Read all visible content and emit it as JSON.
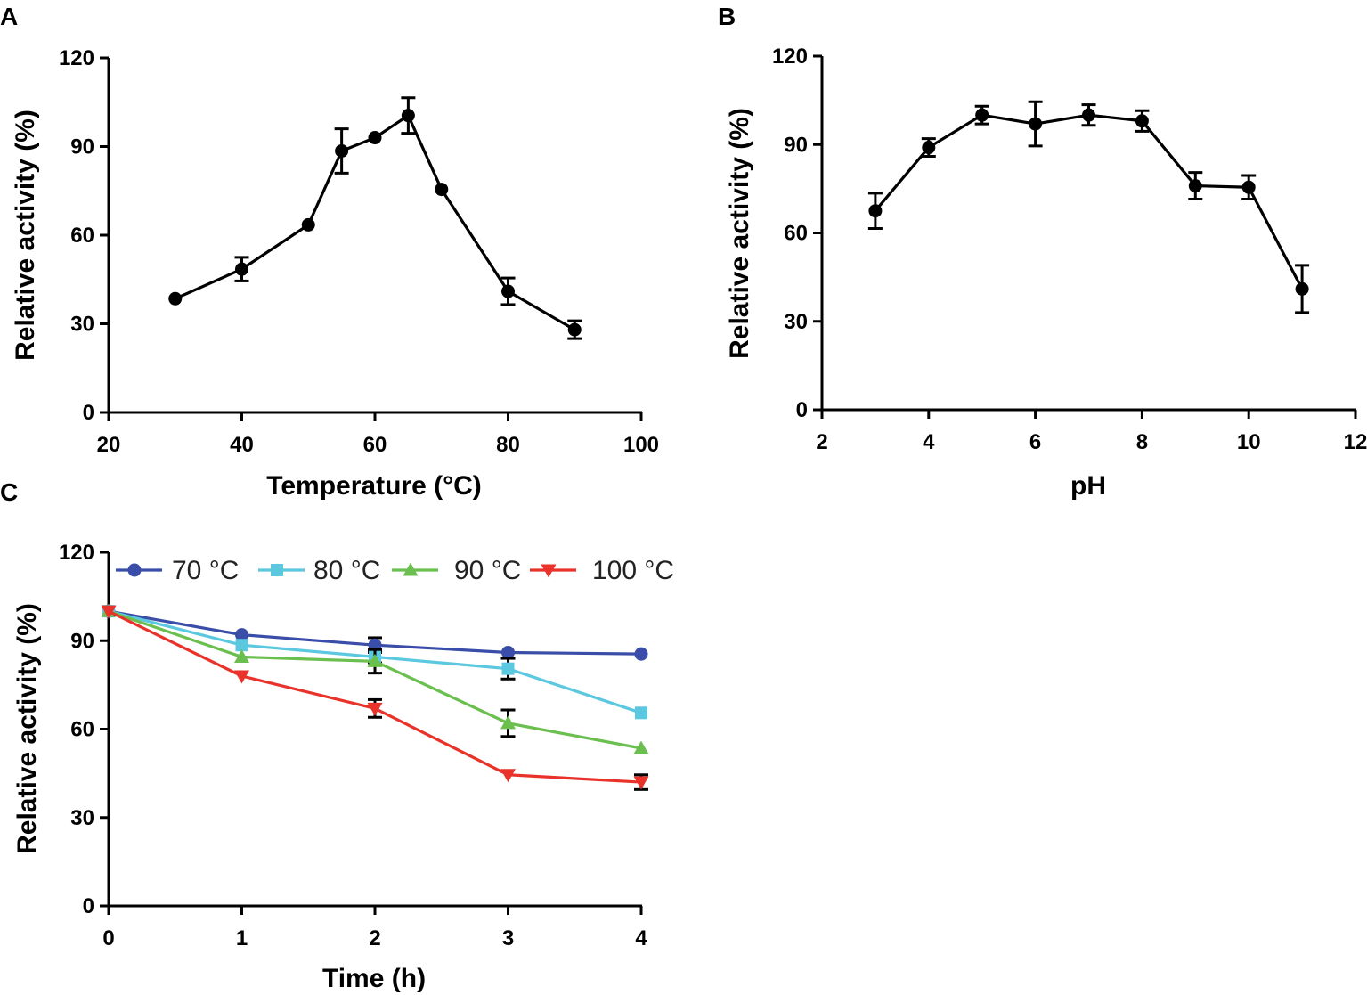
{
  "chart_data": [
    {
      "id": "A",
      "panel_label": "A",
      "type": "line",
      "xlabel": "Temperature (°C)",
      "ylabel": "Relative activity (%)",
      "xlim": [
        20,
        100
      ],
      "ylim": [
        0,
        120
      ],
      "x_ticks": [
        20,
        40,
        60,
        80,
        100
      ],
      "y_ticks": [
        0,
        30,
        60,
        90,
        120
      ],
      "grid": false,
      "series": [
        {
          "name": "Relative activity",
          "color": "#000000",
          "marker": "circle",
          "x": [
            30,
            40,
            50,
            55,
            60,
            65,
            70,
            80,
            90
          ],
          "values": [
            38.5,
            48.5,
            63.5,
            88.5,
            93,
            100.5,
            75.5,
            41,
            28
          ],
          "errors": [
            0,
            4,
            0,
            7.5,
            0,
            6,
            0,
            4.5,
            3
          ]
        }
      ]
    },
    {
      "id": "B",
      "panel_label": "B",
      "type": "line",
      "xlabel": "pH",
      "ylabel": "Relative activity (%)",
      "xlim": [
        2,
        12
      ],
      "ylim": [
        0,
        120
      ],
      "x_ticks": [
        2,
        4,
        6,
        8,
        10,
        12
      ],
      "y_ticks": [
        0,
        30,
        60,
        90,
        120
      ],
      "grid": false,
      "series": [
        {
          "name": "Relative activity",
          "color": "#000000",
          "marker": "circle",
          "x": [
            3,
            4,
            5,
            6,
            7,
            8,
            9,
            10,
            11
          ],
          "values": [
            67.5,
            89,
            100,
            97,
            100,
            98,
            76,
            75.5,
            41
          ],
          "errors": [
            6,
            3,
            3,
            7.5,
            3.5,
            3.5,
            4.5,
            4,
            8
          ]
        }
      ]
    },
    {
      "id": "C",
      "panel_label": "C",
      "type": "line",
      "xlabel": "Time (h)",
      "ylabel": "Relative activity (%)",
      "xlim": [
        0,
        4
      ],
      "ylim": [
        0,
        120
      ],
      "x_ticks": [
        0,
        1,
        2,
        3,
        4
      ],
      "y_ticks": [
        0,
        30,
        60,
        90,
        120
      ],
      "grid": false,
      "legend_position": "top",
      "series": [
        {
          "name": "70 °C",
          "color": "#3a4da8",
          "marker": "circle",
          "x": [
            0,
            1,
            2,
            3,
            4
          ],
          "values": [
            100,
            92,
            88.5,
            86,
            85.5
          ],
          "errors": [
            0,
            0,
            2.5,
            0,
            0
          ]
        },
        {
          "name": "80 °C",
          "color": "#5bc8e0",
          "marker": "square",
          "x": [
            0,
            1,
            2,
            3,
            4
          ],
          "values": [
            100,
            88.5,
            84.5,
            80.5,
            65.5
          ],
          "errors": [
            0,
            0,
            2,
            3.5,
            0
          ]
        },
        {
          "name": "90 °C",
          "color": "#6bbf4e",
          "marker": "triangle-up",
          "x": [
            0,
            1,
            2,
            3,
            4
          ],
          "values": [
            100,
            84.5,
            83,
            62,
            53.5
          ],
          "errors": [
            0,
            0,
            4,
            4.5,
            0
          ]
        },
        {
          "name": "100 °C",
          "color": "#e8322a",
          "marker": "triangle-down",
          "x": [
            0,
            1,
            2,
            3,
            4
          ],
          "values": [
            100,
            78,
            67,
            44.5,
            42
          ],
          "errors": [
            0,
            0,
            3,
            0,
            2.5
          ]
        }
      ]
    }
  ]
}
